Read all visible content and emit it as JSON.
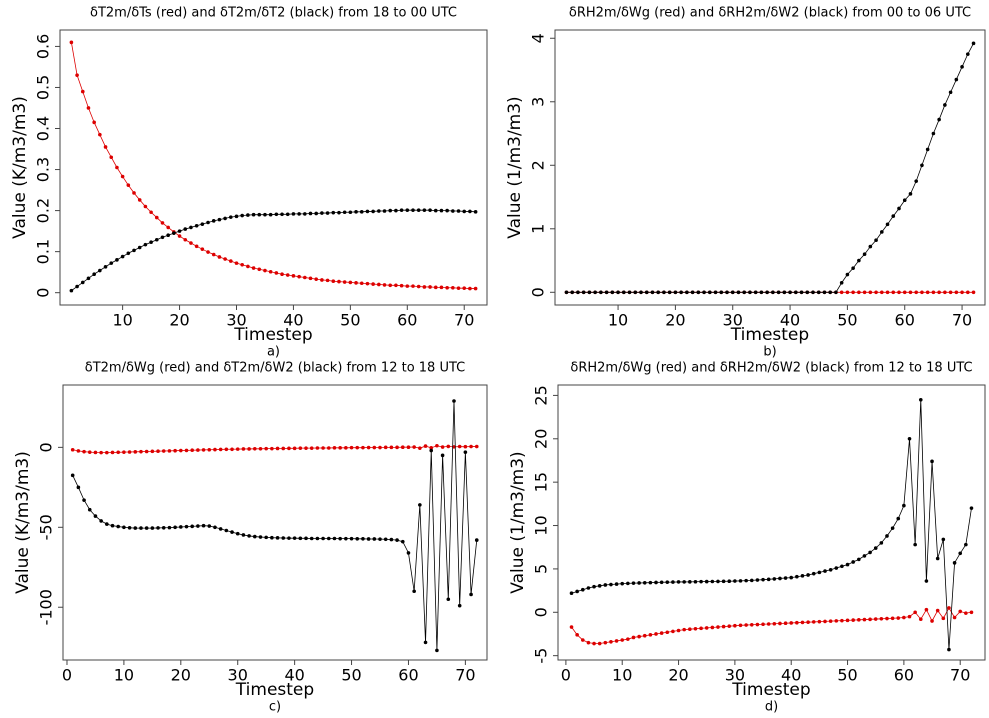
{
  "chart_data": [
    {
      "type": "line",
      "title": "δT2m/δTs (red) and δT2m/δT2 (black) from 18 to 00 UTC",
      "caption": "a)",
      "xlabel": "Timestep",
      "ylabel": "Value (K/m3/m3)",
      "x": [
        1,
        2,
        3,
        4,
        5,
        6,
        7,
        8,
        9,
        10,
        11,
        12,
        13,
        14,
        15,
        16,
        17,
        18,
        19,
        20,
        21,
        22,
        23,
        24,
        25,
        26,
        27,
        28,
        29,
        30,
        31,
        32,
        33,
        34,
        35,
        36,
        37,
        38,
        39,
        40,
        41,
        42,
        43,
        44,
        45,
        46,
        47,
        48,
        49,
        50,
        51,
        52,
        53,
        54,
        55,
        56,
        57,
        58,
        59,
        60,
        61,
        62,
        63,
        64,
        65,
        66,
        67,
        68,
        69,
        70,
        71,
        72
      ],
      "xlim": [
        -1,
        74
      ],
      "xticks": [
        10,
        20,
        30,
        40,
        50,
        60,
        70
      ],
      "ylim": [
        -0.03,
        0.64
      ],
      "yticks": [
        0,
        0.1,
        0.2,
        0.3,
        0.4,
        0.5,
        0.6
      ],
      "series": [
        {
          "color": "#dd0000",
          "values": [
            0.61,
            0.53,
            0.49,
            0.45,
            0.415,
            0.385,
            0.355,
            0.33,
            0.305,
            0.283,
            0.262,
            0.243,
            0.226,
            0.21,
            0.196,
            0.183,
            0.17,
            0.159,
            0.148,
            0.138,
            0.129,
            0.121,
            0.113,
            0.106,
            0.099,
            0.093,
            0.087,
            0.082,
            0.077,
            0.072,
            0.068,
            0.064,
            0.06,
            0.057,
            0.054,
            0.051,
            0.048,
            0.045,
            0.043,
            0.041,
            0.039,
            0.037,
            0.035,
            0.033,
            0.031,
            0.03,
            0.028,
            0.027,
            0.026,
            0.025,
            0.024,
            0.023,
            0.022,
            0.021,
            0.02,
            0.019,
            0.018,
            0.018,
            0.017,
            0.016,
            0.016,
            0.015,
            0.014,
            0.014,
            0.013,
            0.013,
            0.012,
            0.012,
            0.011,
            0.011,
            0.01,
            0.01
          ]
        },
        {
          "color": "#000000",
          "values": [
            0.005,
            0.015,
            0.025,
            0.035,
            0.045,
            0.054,
            0.063,
            0.072,
            0.08,
            0.088,
            0.096,
            0.103,
            0.11,
            0.117,
            0.123,
            0.129,
            0.135,
            0.14,
            0.145,
            0.15,
            0.155,
            0.159,
            0.163,
            0.167,
            0.171,
            0.175,
            0.178,
            0.181,
            0.184,
            0.186,
            0.188,
            0.189,
            0.19,
            0.19,
            0.19,
            0.19,
            0.191,
            0.191,
            0.191,
            0.192,
            0.192,
            0.192,
            0.193,
            0.193,
            0.194,
            0.194,
            0.195,
            0.195,
            0.196,
            0.196,
            0.197,
            0.197,
            0.198,
            0.198,
            0.199,
            0.199,
            0.2,
            0.2,
            0.201,
            0.201,
            0.201,
            0.201,
            0.201,
            0.201,
            0.2,
            0.2,
            0.2,
            0.199,
            0.199,
            0.198,
            0.198,
            0.197
          ]
        }
      ]
    },
    {
      "type": "line",
      "title": "δRH2m/δWg (red) and δRH2m/δW2 (black) from 00 to 06  UTC",
      "caption": "b)",
      "xlabel": "Timestep",
      "ylabel": "Value (1/m3/m3)",
      "x": [
        1,
        2,
        3,
        4,
        5,
        6,
        7,
        8,
        9,
        10,
        11,
        12,
        13,
        14,
        15,
        16,
        17,
        18,
        19,
        20,
        21,
        22,
        23,
        24,
        25,
        26,
        27,
        28,
        29,
        30,
        31,
        32,
        33,
        34,
        35,
        36,
        37,
        38,
        39,
        40,
        41,
        42,
        43,
        44,
        45,
        46,
        47,
        48,
        49,
        50,
        51,
        52,
        53,
        54,
        55,
        56,
        57,
        58,
        59,
        60,
        61,
        62,
        63,
        64,
        65,
        66,
        67,
        68,
        69,
        70,
        71,
        72
      ],
      "xlim": [
        -1,
        74
      ],
      "xticks": [
        10,
        20,
        30,
        40,
        50,
        60,
        70
      ],
      "ylim": [
        -0.2,
        4.13
      ],
      "yticks": [
        0,
        1,
        2,
        3,
        4
      ],
      "series": [
        {
          "color": "#dd0000",
          "values": [
            0,
            0,
            0,
            0,
            0,
            0,
            0,
            0,
            0,
            0,
            0,
            0,
            0,
            0,
            0,
            0,
            0,
            0,
            0,
            0,
            0,
            0,
            0,
            0,
            0,
            0,
            0,
            0,
            0,
            0,
            0,
            0,
            0,
            0,
            0,
            0,
            0,
            0,
            0,
            0,
            0,
            0,
            0,
            0,
            0,
            0,
            0,
            0,
            0,
            0,
            0,
            0,
            0,
            0,
            0,
            0,
            0,
            0,
            0,
            0,
            0,
            0,
            0,
            0,
            0,
            0,
            0,
            0,
            0,
            0,
            0,
            0
          ]
        },
        {
          "color": "#000000",
          "values": [
            0,
            0,
            0,
            0,
            0,
            0,
            0,
            0,
            0,
            0,
            0,
            0,
            0,
            0,
            0,
            0,
            0,
            0,
            0,
            0,
            0,
            0,
            0,
            0,
            0,
            0,
            0,
            0,
            0,
            0,
            0,
            0,
            0,
            0,
            0,
            0,
            0,
            0,
            0,
            0,
            0,
            0,
            0,
            0,
            0,
            0,
            0,
            0,
            0.15,
            0.28,
            0.38,
            0.5,
            0.6,
            0.72,
            0.82,
            0.95,
            1.07,
            1.2,
            1.32,
            1.45,
            1.55,
            1.75,
            2.0,
            2.25,
            2.5,
            2.72,
            2.95,
            3.15,
            3.35,
            3.55,
            3.75,
            3.92
          ]
        }
      ]
    },
    {
      "type": "line",
      "title": "δT2m/δWg (red) and δT2m/δW2 (black) from 12 to 18 UTC",
      "caption": "c)",
      "xlabel": "Timestep",
      "ylabel": "Value (K/m3/m3)",
      "x": [
        1,
        2,
        3,
        4,
        5,
        6,
        7,
        8,
        9,
        10,
        11,
        12,
        13,
        14,
        15,
        16,
        17,
        18,
        19,
        20,
        21,
        22,
        23,
        24,
        25,
        26,
        27,
        28,
        29,
        30,
        31,
        32,
        33,
        34,
        35,
        36,
        37,
        38,
        39,
        40,
        41,
        42,
        43,
        44,
        45,
        46,
        47,
        48,
        49,
        50,
        51,
        52,
        53,
        54,
        55,
        56,
        57,
        58,
        59,
        60,
        61,
        62,
        63,
        64,
        65,
        66,
        67,
        68,
        69,
        70,
        71,
        72
      ],
      "xlim": [
        -0.7,
        73.8
      ],
      "xticks": [
        0,
        10,
        20,
        30,
        40,
        50,
        60,
        70
      ],
      "ylim": [
        -133,
        39
      ],
      "yticks": [
        -100,
        -50,
        0
      ],
      "series": [
        {
          "color": "#dd0000",
          "values": [
            -1.5,
            -2.2,
            -2.7,
            -3,
            -3.2,
            -3.3,
            -3.3,
            -3.2,
            -3.1,
            -3,
            -2.9,
            -2.8,
            -2.7,
            -2.6,
            -2.5,
            -2.4,
            -2.3,
            -2.2,
            -2.1,
            -2,
            -1.9,
            -1.8,
            -1.7,
            -1.6,
            -1.5,
            -1.4,
            -1.3,
            -1.2,
            -1.2,
            -1.1,
            -1,
            -1,
            -0.9,
            -0.9,
            -0.8,
            -0.8,
            -0.7,
            -0.7,
            -0.6,
            -0.6,
            -0.5,
            -0.5,
            -0.5,
            -0.4,
            -0.4,
            -0.4,
            -0.3,
            -0.3,
            -0.3,
            -0.2,
            -0.2,
            -0.2,
            -0.1,
            -0.1,
            -0.1,
            0,
            0,
            0,
            0.1,
            0.1,
            0.2,
            -0.5,
            0.8,
            -0.3,
            1,
            0.2,
            0.6,
            0.3,
            0.5,
            0.4,
            0.5,
            0.5
          ]
        },
        {
          "color": "#000000",
          "values": [
            -17.5,
            -25,
            -33,
            -39,
            -43,
            -46,
            -48,
            -49,
            -49.5,
            -50,
            -50.3,
            -50.5,
            -50.5,
            -50.5,
            -50.5,
            -50.4,
            -50.3,
            -50.2,
            -50,
            -49.8,
            -49.6,
            -49.4,
            -49.2,
            -49,
            -49.2,
            -50,
            -51,
            -52,
            -53,
            -54,
            -54.8,
            -55.4,
            -55.8,
            -56.1,
            -56.3,
            -56.5,
            -56.6,
            -56.7,
            -56.8,
            -56.8,
            -56.9,
            -56.9,
            -57,
            -57,
            -57,
            -57,
            -57,
            -57.1,
            -57.1,
            -57.1,
            -57.2,
            -57.2,
            -57.3,
            -57.3,
            -57.4,
            -57.5,
            -57.7,
            -58,
            -59,
            -66,
            -90,
            -36,
            -122,
            -2,
            -127,
            -5,
            -95,
            29,
            -99,
            -3,
            -92,
            -58
          ]
        }
      ]
    },
    {
      "type": "line",
      "title": "δRH2m/δWg (red) and δRH2m/δW2 (black) from 12 to 18  UTC",
      "caption": "d)",
      "xlabel": "Timestep",
      "ylabel": "Value (1/m3/m3)",
      "x": [
        1,
        2,
        3,
        4,
        5,
        6,
        7,
        8,
        9,
        10,
        11,
        12,
        13,
        14,
        15,
        16,
        17,
        18,
        19,
        20,
        21,
        22,
        23,
        24,
        25,
        26,
        27,
        28,
        29,
        30,
        31,
        32,
        33,
        34,
        35,
        36,
        37,
        38,
        39,
        40,
        41,
        42,
        43,
        44,
        45,
        46,
        47,
        48,
        49,
        50,
        51,
        52,
        53,
        54,
        55,
        56,
        57,
        58,
        59,
        60,
        61,
        62,
        63,
        64,
        65,
        66,
        67,
        68,
        69,
        70,
        71,
        72
      ],
      "xlim": [
        -1.4,
        74.4
      ],
      "xticks": [
        0,
        10,
        20,
        30,
        40,
        50,
        60,
        70
      ],
      "ylim": [
        -5.5,
        26.2
      ],
      "yticks": [
        -5,
        0,
        5,
        10,
        15,
        20,
        25
      ],
      "series": [
        {
          "color": "#dd0000",
          "values": [
            -1.7,
            -2.6,
            -3.2,
            -3.5,
            -3.6,
            -3.6,
            -3.5,
            -3.4,
            -3.3,
            -3.2,
            -3.1,
            -2.9,
            -2.8,
            -2.7,
            -2.6,
            -2.5,
            -2.4,
            -2.3,
            -2.2,
            -2.1,
            -2,
            -1.95,
            -1.9,
            -1.85,
            -1.8,
            -1.75,
            -1.7,
            -1.65,
            -1.6,
            -1.55,
            -1.5,
            -1.47,
            -1.44,
            -1.41,
            -1.38,
            -1.35,
            -1.32,
            -1.29,
            -1.26,
            -1.23,
            -1.2,
            -1.17,
            -1.14,
            -1.11,
            -1.08,
            -1.05,
            -1.02,
            -0.99,
            -0.96,
            -0.93,
            -0.9,
            -0.87,
            -0.84,
            -0.81,
            -0.78,
            -0.75,
            -0.72,
            -0.69,
            -0.66,
            -0.6,
            -0.5,
            0,
            -0.8,
            0.3,
            -1,
            0.2,
            -0.7,
            0.5,
            -0.6,
            0.1,
            -0.1,
            0
          ]
        },
        {
          "color": "#000000",
          "values": [
            2.2,
            2.4,
            2.6,
            2.8,
            2.95,
            3.05,
            3.15,
            3.2,
            3.25,
            3.3,
            3.33,
            3.36,
            3.38,
            3.4,
            3.42,
            3.44,
            3.46,
            3.47,
            3.48,
            3.5,
            3.5,
            3.51,
            3.52,
            3.53,
            3.54,
            3.55,
            3.56,
            3.57,
            3.58,
            3.6,
            3.62,
            3.65,
            3.68,
            3.72,
            3.76,
            3.8,
            3.85,
            3.9,
            3.95,
            4.0,
            4.1,
            4.2,
            4.3,
            4.45,
            4.6,
            4.75,
            4.9,
            5.1,
            5.3,
            5.5,
            5.8,
            6.1,
            6.5,
            6.9,
            7.4,
            8,
            8.8,
            9.7,
            10.8,
            12.3,
            20,
            7.8,
            24.5,
            3.6,
            17.4,
            6.2,
            8.4,
            -4.3,
            5.7,
            6.8,
            7.8,
            12
          ]
        }
      ]
    }
  ]
}
